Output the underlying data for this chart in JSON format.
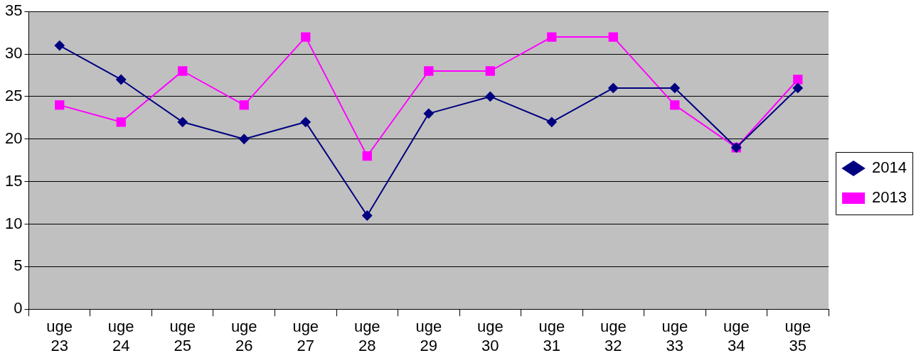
{
  "chart_data": {
    "type": "line",
    "categories": [
      "uge 23",
      "uge 24",
      "uge 25",
      "uge 26",
      "uge 27",
      "uge 28",
      "uge 29",
      "uge 30",
      "uge 31",
      "uge 32",
      "uge 33",
      "uge 34",
      "uge 35"
    ],
    "series": [
      {
        "name": "2014",
        "color": "#000080",
        "marker": "diamond",
        "values": [
          31,
          27,
          22,
          20,
          22,
          11,
          23,
          25,
          22,
          26,
          26,
          19,
          26
        ]
      },
      {
        "name": "2013",
        "color": "#ff00ff",
        "marker": "square",
        "values": [
          24,
          22,
          28,
          24,
          32,
          18,
          28,
          28,
          32,
          32,
          24,
          19,
          27
        ]
      }
    ],
    "ylim": [
      0,
      35
    ],
    "yticks": [
      0,
      5,
      10,
      15,
      20,
      25,
      30,
      35
    ],
    "grid": "y",
    "legend": "right",
    "line_style": "solid"
  }
}
